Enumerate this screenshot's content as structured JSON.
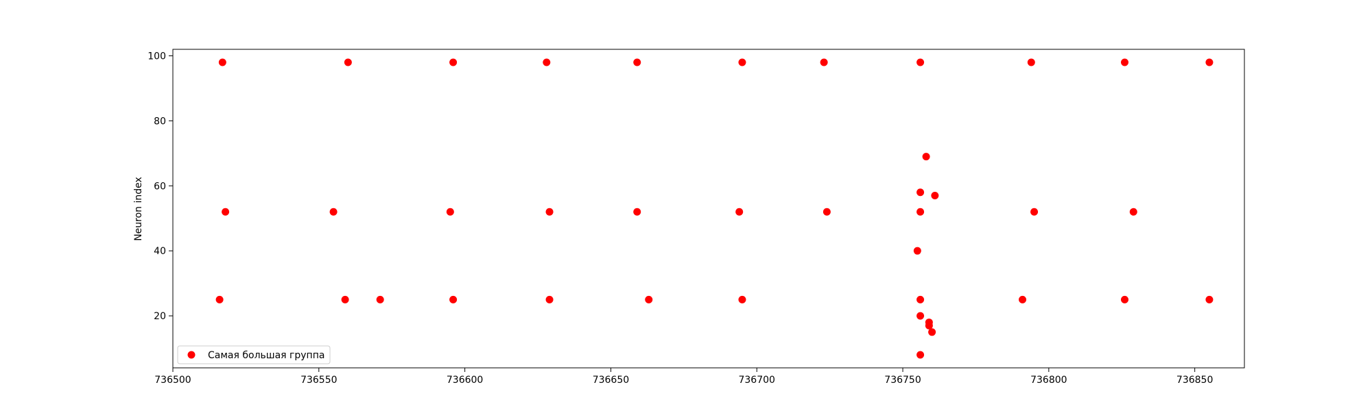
{
  "chart_data": {
    "type": "scatter",
    "title": "",
    "xlabel": "",
    "ylabel": "Neuron index",
    "xlim": [
      736500,
      736867
    ],
    "ylim": [
      4,
      102
    ],
    "xticks": [
      736500,
      736550,
      736600,
      736650,
      736700,
      736750,
      736800,
      736850
    ],
    "yticks": [
      20,
      40,
      60,
      80,
      100
    ],
    "grid": false,
    "legend": {
      "placement": "lower-left"
    },
    "series": [
      {
        "name": "Самая большая группа",
        "color": "#ff0000",
        "marker": "circle",
        "points": [
          {
            "x": 736517,
            "y": 98
          },
          {
            "x": 736560,
            "y": 98
          },
          {
            "x": 736596,
            "y": 98
          },
          {
            "x": 736628,
            "y": 98
          },
          {
            "x": 736659,
            "y": 98
          },
          {
            "x": 736695,
            "y": 98
          },
          {
            "x": 736723,
            "y": 98
          },
          {
            "x": 736756,
            "y": 98
          },
          {
            "x": 736794,
            "y": 98
          },
          {
            "x": 736826,
            "y": 98
          },
          {
            "x": 736855,
            "y": 98
          },
          {
            "x": 736518,
            "y": 52
          },
          {
            "x": 736555,
            "y": 52
          },
          {
            "x": 736595,
            "y": 52
          },
          {
            "x": 736629,
            "y": 52
          },
          {
            "x": 736659,
            "y": 52
          },
          {
            "x": 736694,
            "y": 52
          },
          {
            "x": 736724,
            "y": 52
          },
          {
            "x": 736756,
            "y": 52
          },
          {
            "x": 736795,
            "y": 52
          },
          {
            "x": 736829,
            "y": 52
          },
          {
            "x": 736516,
            "y": 25
          },
          {
            "x": 736559,
            "y": 25
          },
          {
            "x": 736571,
            "y": 25
          },
          {
            "x": 736596,
            "y": 25
          },
          {
            "x": 736629,
            "y": 25
          },
          {
            "x": 736663,
            "y": 25
          },
          {
            "x": 736695,
            "y": 25
          },
          {
            "x": 736756,
            "y": 25
          },
          {
            "x": 736791,
            "y": 25
          },
          {
            "x": 736826,
            "y": 25
          },
          {
            "x": 736855,
            "y": 25
          },
          {
            "x": 736758,
            "y": 69
          },
          {
            "x": 736756,
            "y": 58
          },
          {
            "x": 736761,
            "y": 57
          },
          {
            "x": 736755,
            "y": 40
          },
          {
            "x": 736756,
            "y": 20
          },
          {
            "x": 736759,
            "y": 18
          },
          {
            "x": 736759,
            "y": 17
          },
          {
            "x": 736760,
            "y": 15
          },
          {
            "x": 736756,
            "y": 8
          }
        ]
      }
    ]
  }
}
